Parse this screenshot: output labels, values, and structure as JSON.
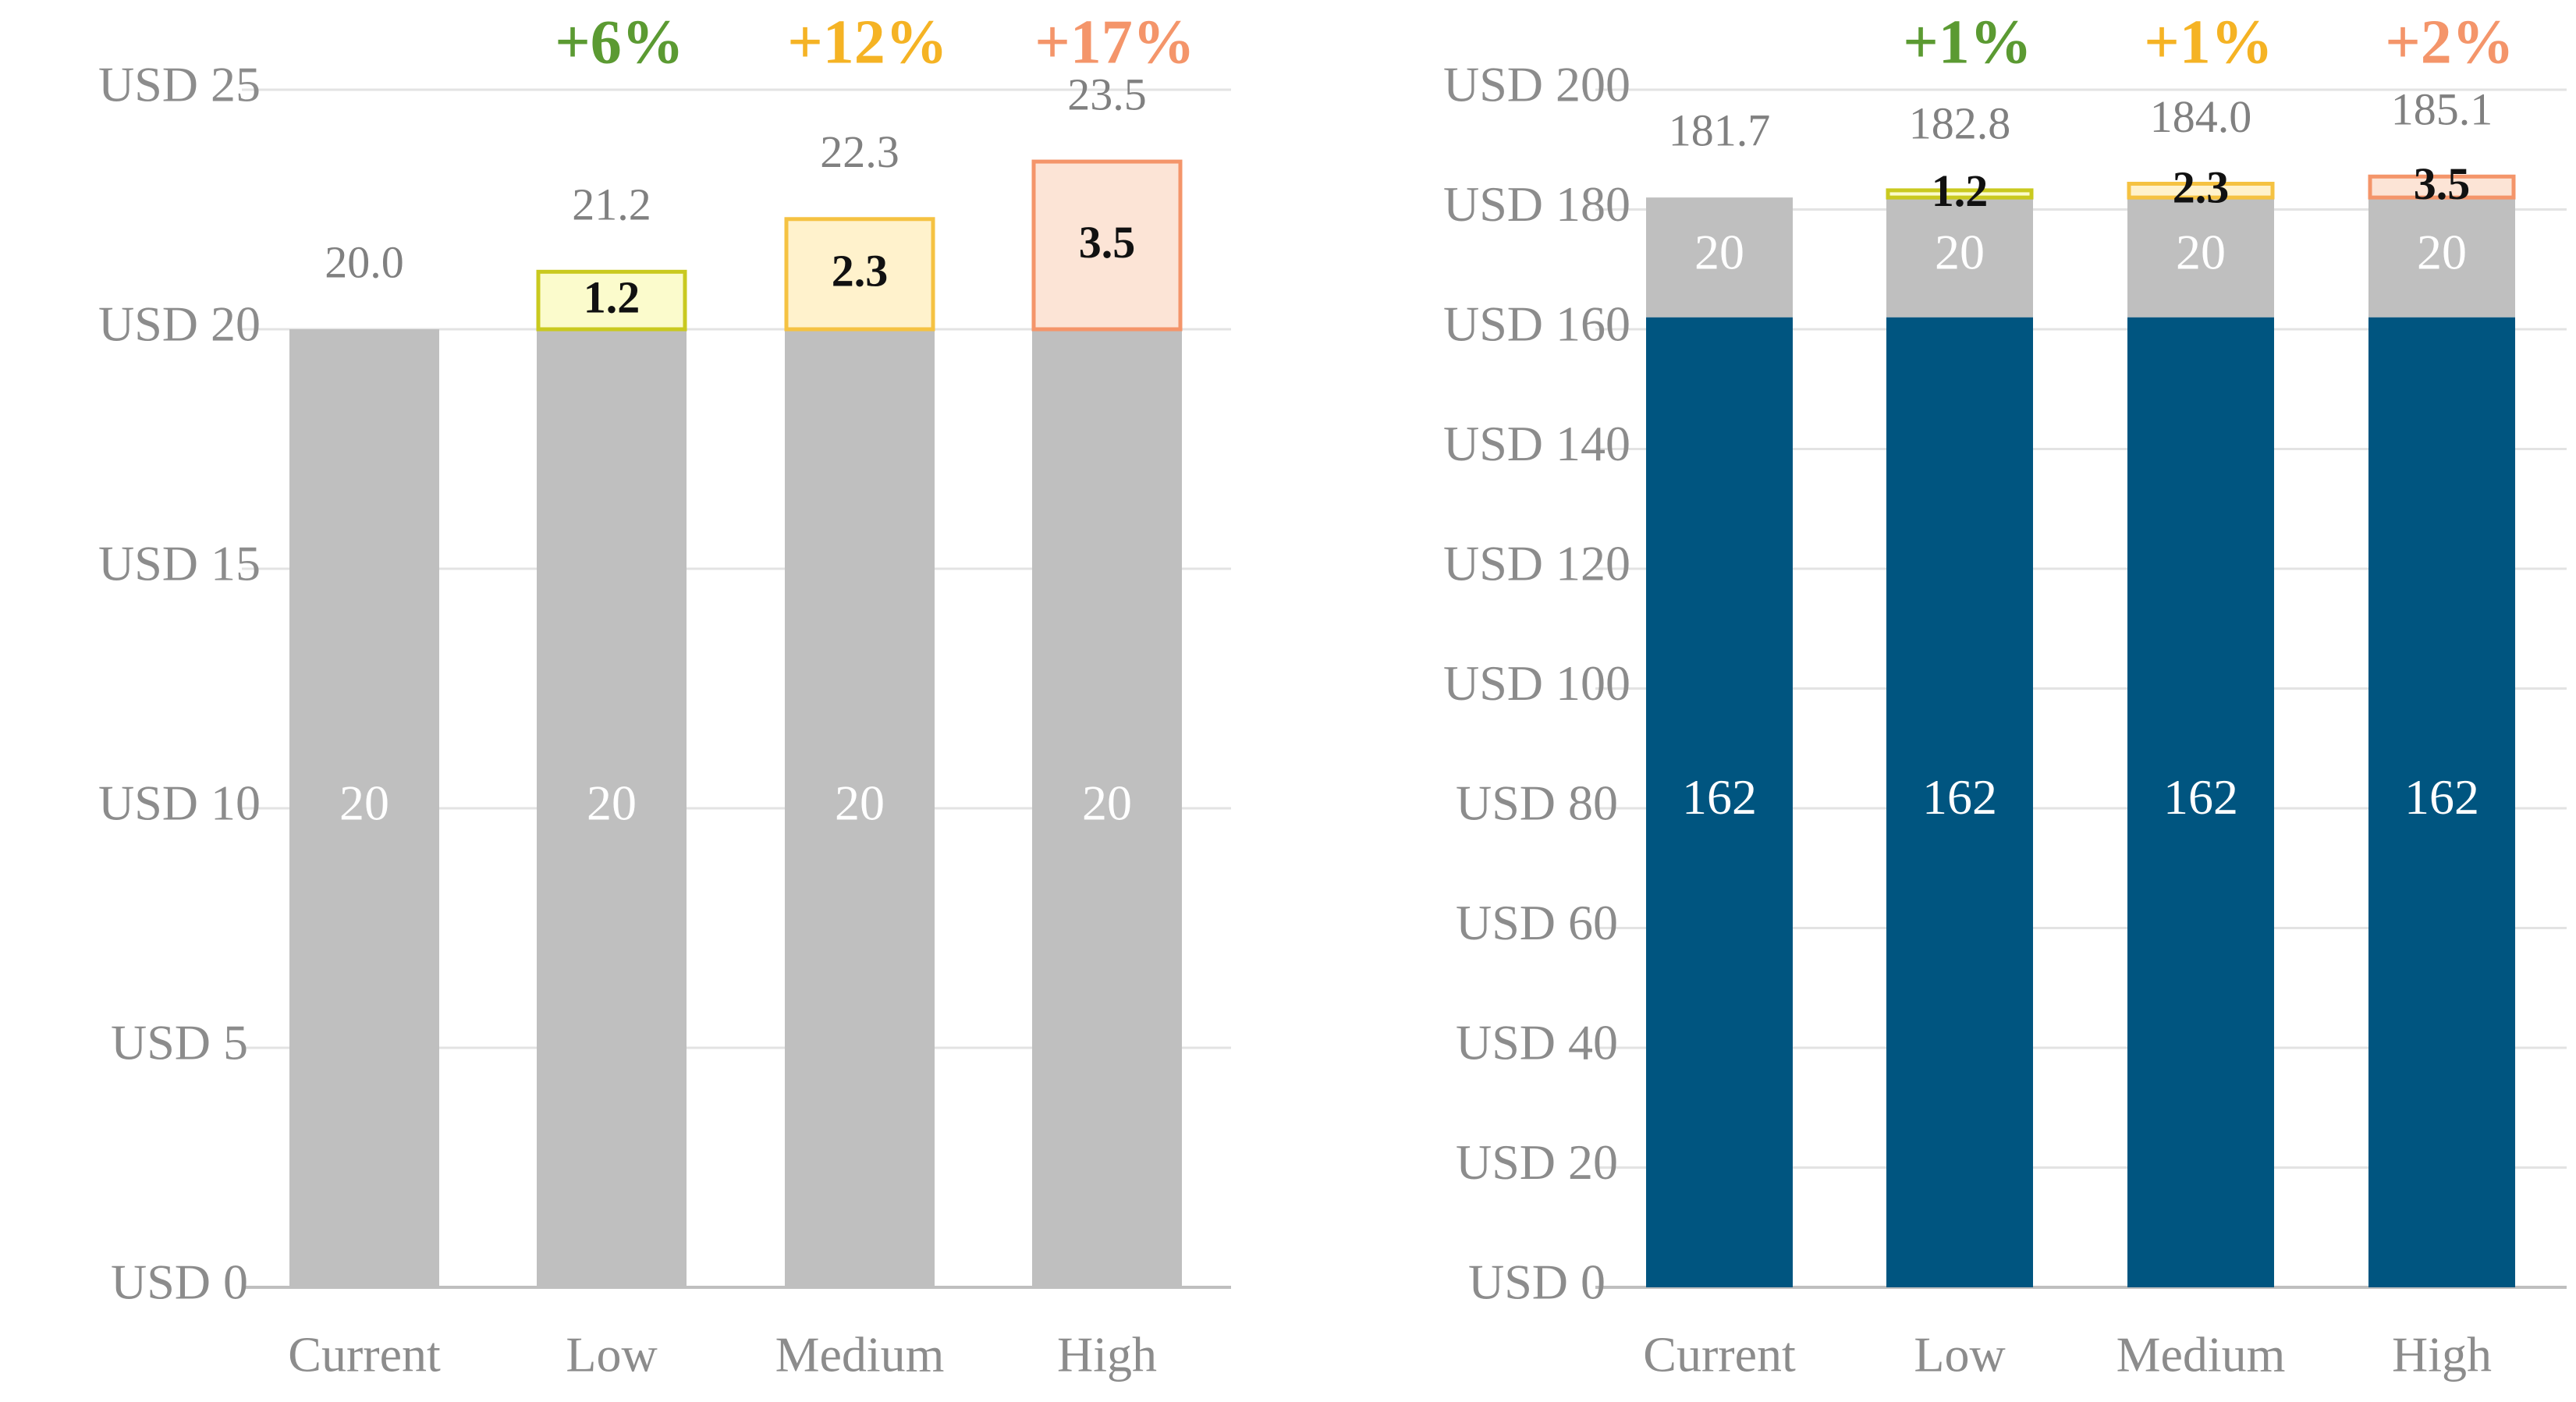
{
  "chart_data": [
    {
      "type": "bar",
      "stacked": true,
      "categories": [
        "Current",
        "Low",
        "Medium",
        "High"
      ],
      "y_tick_labels": [
        "USD 0",
        "USD 5",
        "USD 10",
        "USD 15",
        "USD 20",
        "USD 25"
      ],
      "ylim": [
        0,
        25
      ],
      "grid": true,
      "series": [
        {
          "values": [
            20,
            20,
            20,
            20
          ],
          "labels": [
            "20",
            "20",
            "20",
            "20"
          ],
          "color": "#bfbfbf"
        },
        {
          "values": [
            0,
            1.2,
            2.3,
            3.5
          ],
          "labels": [
            "",
            "1.2",
            "2.3",
            "3.5"
          ],
          "fills": [
            "",
            "#fbfbcc",
            "#fff2cc",
            "#fce4d6"
          ],
          "borders": [
            "",
            "#c9c91f",
            "#f5c242",
            "#f4956a"
          ]
        }
      ],
      "totals": [
        "20.0",
        "21.2",
        "22.3",
        "23.5"
      ],
      "percent_changes": [
        "",
        "+6%",
        "+12%",
        "+17%"
      ],
      "percent_colors": [
        "",
        "#5b9a32",
        "#f5b324",
        "#f4956a"
      ]
    },
    {
      "type": "bar",
      "stacked": true,
      "categories": [
        "Current",
        "Low",
        "Medium",
        "High"
      ],
      "y_tick_labels": [
        "USD 0",
        "USD 20",
        "USD 40",
        "USD 60",
        "USD 80",
        "USD 100",
        "USD 120",
        "USD 140",
        "USD 160",
        "USD 180",
        "USD 200"
      ],
      "ylim": [
        0,
        200
      ],
      "grid": true,
      "series": [
        {
          "values": [
            162,
            162,
            162,
            162
          ],
          "labels": [
            "162",
            "162",
            "162",
            "162"
          ],
          "color": "#005580"
        },
        {
          "values": [
            20,
            20,
            20,
            20
          ],
          "labels": [
            "20",
            "20",
            "20",
            "20"
          ],
          "color": "#bfbfbf"
        },
        {
          "values": [
            0,
            1.2,
            2.3,
            3.5
          ],
          "labels": [
            "",
            "1.2",
            "2.3",
            "3.5"
          ],
          "fills": [
            "",
            "#fbfbcc",
            "#fff2cc",
            "#fce4d6"
          ],
          "borders": [
            "",
            "#c9c91f",
            "#f5c242",
            "#f4956a"
          ]
        }
      ],
      "totals": [
        "181.7",
        "182.8",
        "184.0",
        "185.1"
      ],
      "percent_changes": [
        "",
        "+1%",
        "+1%",
        "+2%"
      ],
      "percent_colors": [
        "",
        "#5b9a32",
        "#f5b324",
        "#f4956a"
      ]
    }
  ]
}
